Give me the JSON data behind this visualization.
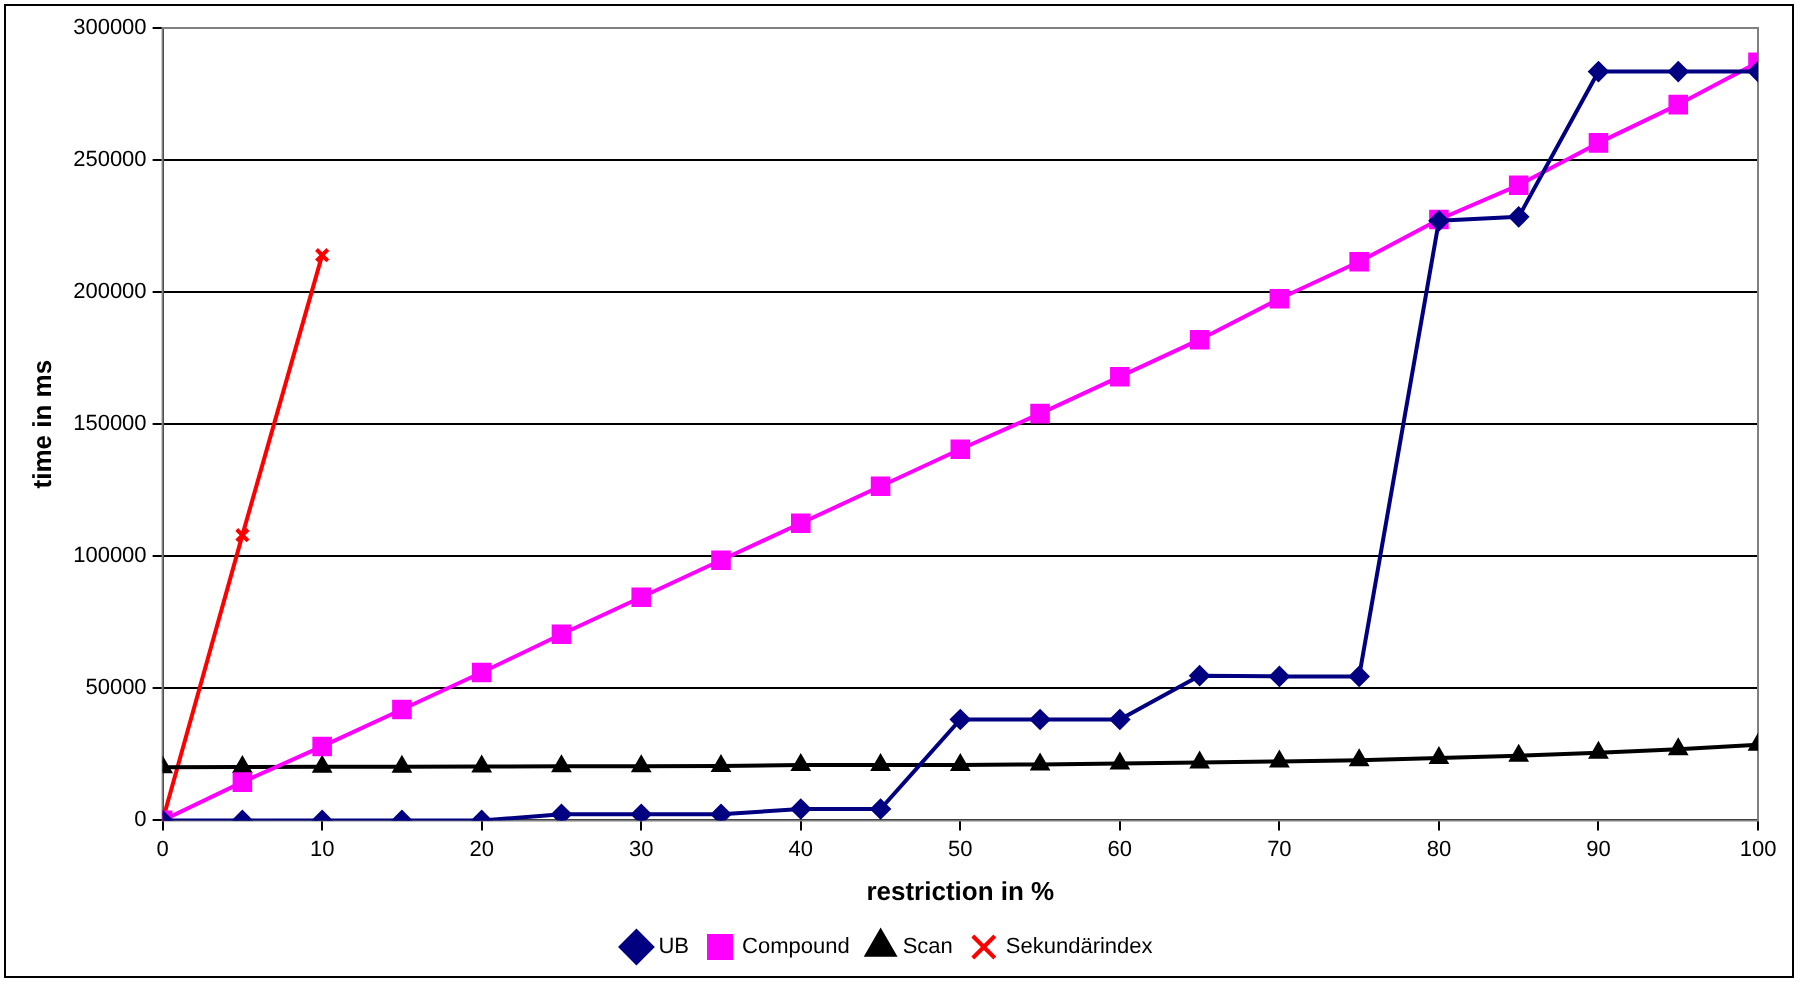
{
  "chart_data": {
    "type": "line",
    "xlabel": "restriction in %",
    "ylabel": "time in ms",
    "x": [
      0,
      5,
      10,
      15,
      20,
      25,
      30,
      35,
      40,
      45,
      50,
      55,
      60,
      65,
      70,
      75,
      80,
      85,
      90,
      95,
      100
    ],
    "xlim": [
      0,
      100
    ],
    "xticks": [
      0,
      10,
      20,
      30,
      40,
      50,
      60,
      70,
      80,
      90,
      100
    ],
    "ylim": [
      0,
      300000
    ],
    "yticks": [
      0,
      50000,
      100000,
      150000,
      200000,
      250000,
      300000
    ],
    "grid": "y",
    "legend": "bottom",
    "line_style": "solid",
    "series": [
      {
        "name": "UB",
        "color": "#000080",
        "marker": "diamond",
        "values": [
          0,
          0,
          0,
          0,
          0,
          2300,
          2300,
          2300,
          4300,
          4300,
          38200,
          38200,
          38200,
          54800,
          54500,
          54500,
          227000,
          228500,
          283500,
          283500,
          283500
        ]
      },
      {
        "name": "Compound",
        "color": "#ff00ff",
        "marker": "square",
        "values": [
          0,
          14500,
          28000,
          42000,
          56000,
          70500,
          84500,
          98500,
          112500,
          126500,
          140500,
          154000,
          168000,
          182000,
          197500,
          211500,
          227500,
          240500,
          256500,
          271000,
          287000
        ]
      },
      {
        "name": "Scan",
        "color": "#000000",
        "marker": "triangle",
        "values": [
          20100,
          20200,
          20300,
          20300,
          20400,
          20500,
          20500,
          20600,
          21000,
          21000,
          21000,
          21200,
          21500,
          21900,
          22300,
          22800,
          23600,
          24500,
          25600,
          26900,
          28600
        ]
      },
      {
        "name": "Sekundärindex",
        "color": "#ff0000",
        "marker": "cross",
        "x": [
          0,
          5,
          10
        ],
        "values": [
          0,
          108000,
          214000
        ]
      }
    ]
  }
}
